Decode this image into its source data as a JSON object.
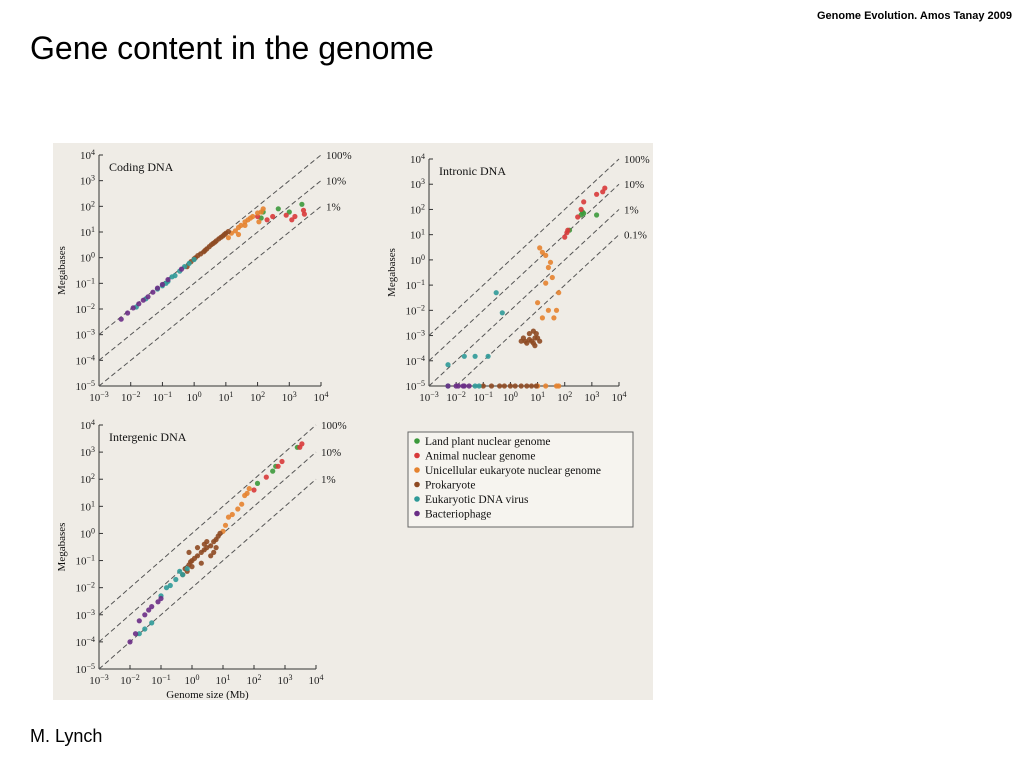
{
  "header": {
    "note": "Genome Evolution. Amos Tanay 2009"
  },
  "slide": {
    "title": "Gene content in the genome",
    "credit": "M. Lynch"
  },
  "legend": {
    "items": [
      {
        "label": "Land plant nuclear genome",
        "color": "#3c9a3c"
      },
      {
        "label": "Animal nuclear genome",
        "color": "#d83a3a"
      },
      {
        "label": "Unicellular eukaryote nuclear genome",
        "color": "#e5832f"
      },
      {
        "label": "Prokaryote",
        "color": "#8e4a22"
      },
      {
        "label": "Eukaryotic DNA virus",
        "color": "#2f9a98"
      },
      {
        "label": "Bacteriophage",
        "color": "#6a2e86"
      }
    ]
  },
  "chart_data": [
    {
      "type": "scatter",
      "title": "Coding DNA",
      "xlabel": "",
      "ylabel": "Megabases",
      "xscale": "log",
      "yscale": "log",
      "xlim": [
        0.001,
        10000
      ],
      "ylim": [
        1e-05,
        10000
      ],
      "x_ticks": [
        "10−3",
        "10−2",
        "10−1",
        "100",
        "101",
        "102",
        "103",
        "104"
      ],
      "y_ticks": [
        "10−5",
        "10−4",
        "10−3",
        "10−2",
        "10−1",
        "100",
        "101",
        "102",
        "103",
        "104"
      ],
      "reference_lines": [
        {
          "label": "100%",
          "fraction": 1
        },
        {
          "label": "10%",
          "fraction": 0.1
        },
        {
          "label": "1%",
          "fraction": 0.01
        }
      ],
      "series": [
        {
          "name": "Land plant nuclear genome",
          "points": [
            [
              150,
              60
            ],
            [
              450,
              80
            ],
            [
              1000,
              60
            ],
            [
              2500,
              120
            ],
            [
              130,
              35
            ]
          ]
        },
        {
          "name": "Animal nuclear genome",
          "points": [
            [
              100,
              40
            ],
            [
              200,
              30
            ],
            [
              300,
              40
            ],
            [
              800,
              45
            ],
            [
              1200,
              30
            ],
            [
              2800,
              70
            ],
            [
              3000,
              50
            ],
            [
              1500,
              40
            ]
          ]
        },
        {
          "name": "Unicellular eukaryote nuclear genome",
          "points": [
            [
              12,
              6
            ],
            [
              15,
              9
            ],
            [
              20,
              11
            ],
            [
              25,
              15
            ],
            [
              30,
              18
            ],
            [
              40,
              25
            ],
            [
              50,
              30
            ],
            [
              60,
              35
            ],
            [
              70,
              40
            ],
            [
              100,
              55
            ],
            [
              110,
              25
            ],
            [
              130,
              60
            ],
            [
              150,
              80
            ],
            [
              40,
              18
            ],
            [
              25,
              8
            ]
          ]
        },
        {
          "name": "Prokaryote",
          "points": [
            [
              0.6,
              0.45
            ],
            [
              0.8,
              0.7
            ],
            [
              1,
              0.9
            ],
            [
              1.3,
              1.2
            ],
            [
              1.6,
              1.4
            ],
            [
              2,
              1.7
            ],
            [
              2.5,
              2.2
            ],
            [
              3,
              2.7
            ],
            [
              3.5,
              3.2
            ],
            [
              4,
              3.6
            ],
            [
              5,
              4.5
            ],
            [
              6,
              5.4
            ],
            [
              7,
              6.2
            ],
            [
              8,
              7
            ],
            [
              9,
              8
            ],
            [
              10,
              9
            ],
            [
              12,
              10.5
            ],
            [
              2.2,
              1.9
            ],
            [
              4.5,
              4
            ],
            [
              1.1,
              1
            ]
          ]
        },
        {
          "name": "Eukaryotic DNA virus",
          "points": [
            [
              0.015,
              0.012
            ],
            [
              0.03,
              0.025
            ],
            [
              0.07,
              0.06
            ],
            [
              0.1,
              0.08
            ],
            [
              0.13,
              0.1
            ],
            [
              0.15,
              0.12
            ],
            [
              0.2,
              0.18
            ],
            [
              0.25,
              0.2
            ],
            [
              0.35,
              0.3
            ],
            [
              0.5,
              0.45
            ],
            [
              0.7,
              0.6
            ],
            [
              1,
              0.85
            ]
          ]
        },
        {
          "name": "Bacteriophage",
          "points": [
            [
              0.005,
              0.004
            ],
            [
              0.008,
              0.007
            ],
            [
              0.012,
              0.011
            ],
            [
              0.018,
              0.016
            ],
            [
              0.025,
              0.022
            ],
            [
              0.035,
              0.03
            ],
            [
              0.05,
              0.045
            ],
            [
              0.07,
              0.065
            ],
            [
              0.1,
              0.09
            ],
            [
              0.15,
              0.14
            ],
            [
              0.4,
              0.36
            ]
          ]
        }
      ]
    },
    {
      "type": "scatter",
      "title": "Intronic DNA",
      "xlabel": "",
      "ylabel": "Megabases",
      "xscale": "log",
      "yscale": "log",
      "xlim": [
        0.001,
        10000
      ],
      "ylim": [
        1e-05,
        10000
      ],
      "x_ticks": [
        "10−3",
        "10−2",
        "10−1",
        "100",
        "101",
        "102",
        "103",
        "104"
      ],
      "y_ticks": [
        "10−5",
        "10−4",
        "10−3",
        "10−2",
        "10−1",
        "100",
        "101",
        "102",
        "103",
        "104"
      ],
      "reference_lines": [
        {
          "label": "100%",
          "fraction": 1
        },
        {
          "label": "10%",
          "fraction": 0.1
        },
        {
          "label": "1%",
          "fraction": 0.01
        },
        {
          "label": "0.1%",
          "fraction": 0.001
        }
      ],
      "series": [
        {
          "name": "Land plant nuclear genome",
          "points": [
            [
              150,
              15
            ],
            [
              400,
              60
            ],
            [
              450,
              80
            ],
            [
              500,
              70
            ],
            [
              1500,
              60
            ]
          ]
        },
        {
          "name": "Animal nuclear genome",
          "points": [
            [
              100,
              8
            ],
            [
              120,
              12
            ],
            [
              130,
              15
            ],
            [
              300,
              50
            ],
            [
              400,
              100
            ],
            [
              500,
              200
            ],
            [
              1500,
              400
            ],
            [
              2500,
              500
            ],
            [
              3000,
              700
            ]
          ]
        },
        {
          "name": "Unicellular eukaryote nuclear genome",
          "points": [
            [
              12,
              3
            ],
            [
              15,
              2
            ],
            [
              20,
              1.5
            ],
            [
              25,
              0.5
            ],
            [
              30,
              0.8
            ],
            [
              35,
              0.2
            ],
            [
              20,
              0.12
            ],
            [
              10,
              0.02
            ],
            [
              25,
              0.01
            ],
            [
              40,
              0.005
            ],
            [
              60,
              0.05
            ],
            [
              15,
              0.005
            ],
            [
              50,
              0.01
            ],
            [
              10,
              1e-05
            ],
            [
              20,
              1e-05
            ],
            [
              50,
              1e-05
            ],
            [
              60,
              1e-05
            ]
          ]
        },
        {
          "name": "Prokaryote",
          "points": [
            [
              2.5,
              0.0006
            ],
            [
              3,
              0.0008
            ],
            [
              3.5,
              0.0006
            ],
            [
              4,
              0.0005
            ],
            [
              5,
              0.0007
            ],
            [
              6,
              0.0006
            ],
            [
              7,
              0.0005
            ],
            [
              8,
              0.0004
            ],
            [
              10,
              0.0008
            ],
            [
              12,
              0.0006
            ],
            [
              5,
              0.0012
            ],
            [
              7,
              0.0015
            ],
            [
              8,
              0.0008
            ],
            [
              9,
              0.0012
            ],
            [
              0.1,
              1e-05
            ],
            [
              0.2,
              1e-05
            ],
            [
              0.4,
              1e-05
            ],
            [
              0.6,
              1e-05
            ],
            [
              1,
              1e-05
            ],
            [
              1.5,
              1e-05
            ],
            [
              2.5,
              1e-05
            ],
            [
              4,
              1e-05
            ],
            [
              6,
              1e-05
            ],
            [
              9,
              1e-05
            ]
          ]
        },
        {
          "name": "Eukaryotic DNA virus",
          "points": [
            [
              0.005,
              7e-05
            ],
            [
              0.02,
              0.00015
            ],
            [
              0.05,
              0.00015
            ],
            [
              0.15,
              0.00015
            ],
            [
              0.3,
              0.05
            ],
            [
              0.5,
              0.008
            ],
            [
              0.005,
              1e-05
            ],
            [
              0.05,
              1e-05
            ],
            [
              0.07,
              1e-05
            ]
          ]
        },
        {
          "name": "Bacteriophage",
          "points": [
            [
              0.005,
              1e-05
            ],
            [
              0.01,
              1e-05
            ],
            [
              0.012,
              1e-05
            ],
            [
              0.018,
              1e-05
            ],
            [
              0.02,
              1e-05
            ],
            [
              0.03,
              1e-05
            ]
          ]
        }
      ]
    },
    {
      "type": "scatter",
      "title": "Intergenic DNA",
      "xlabel": "Genome size (Mb)",
      "ylabel": "Megabases",
      "xscale": "log",
      "yscale": "log",
      "xlim": [
        0.001,
        10000
      ],
      "ylim": [
        1e-05,
        10000
      ],
      "x_ticks": [
        "10−3",
        "10−2",
        "10−1",
        "100",
        "101",
        "102",
        "103",
        "104"
      ],
      "y_ticks": [
        "10−5",
        "10−4",
        "10−3",
        "10−2",
        "10−1",
        "100",
        "101",
        "102",
        "103",
        "104"
      ],
      "reference_lines": [
        {
          "label": "100%",
          "fraction": 1
        },
        {
          "label": "10%",
          "fraction": 0.1
        },
        {
          "label": "1%",
          "fraction": 0.01
        }
      ],
      "series": [
        {
          "name": "Land plant nuclear genome",
          "points": [
            [
              130,
              70
            ],
            [
              500,
              300
            ],
            [
              2500,
              1500
            ],
            [
              400,
              200
            ]
          ]
        },
        {
          "name": "Animal nuclear genome",
          "points": [
            [
              100,
              40
            ],
            [
              250,
              120
            ],
            [
              600,
              300
            ],
            [
              800,
              450
            ],
            [
              3000,
              1500
            ],
            [
              3500,
              2000
            ]
          ]
        },
        {
          "name": "Unicellular eukaryote nuclear genome",
          "points": [
            [
              10,
              1.2
            ],
            [
              12,
              2
            ],
            [
              15,
              4
            ],
            [
              20,
              5
            ],
            [
              30,
              8
            ],
            [
              40,
              12
            ],
            [
              50,
              25
            ],
            [
              60,
              30
            ],
            [
              70,
              45
            ]
          ]
        },
        {
          "name": "Prokaryote",
          "points": [
            [
              0.5,
              0.03
            ],
            [
              0.6,
              0.05
            ],
            [
              0.7,
              0.04
            ],
            [
              0.8,
              0.07
            ],
            [
              0.9,
              0.09
            ],
            [
              1,
              0.1
            ],
            [
              1.2,
              0.12
            ],
            [
              1.5,
              0.15
            ],
            [
              2,
              0.2
            ],
            [
              2.5,
              0.25
            ],
            [
              3,
              0.3
            ],
            [
              4,
              0.35
            ],
            [
              5,
              0.5
            ],
            [
              6,
              0.6
            ],
            [
              7,
              0.8
            ],
            [
              8,
              1
            ],
            [
              1,
              0.06
            ],
            [
              1.5,
              0.3
            ],
            [
              2,
              0.08
            ],
            [
              3,
              0.5
            ],
            [
              4,
              0.15
            ],
            [
              5,
              0.2
            ],
            [
              0.8,
              0.2
            ],
            [
              2.5,
              0.4
            ],
            [
              6,
              0.3
            ]
          ]
        },
        {
          "name": "Eukaryotic DNA virus",
          "points": [
            [
              0.02,
              0.0002
            ],
            [
              0.03,
              0.0003
            ],
            [
              0.05,
              0.0005
            ],
            [
              0.1,
              0.005
            ],
            [
              0.15,
              0.01
            ],
            [
              0.2,
              0.012
            ],
            [
              0.3,
              0.02
            ],
            [
              0.4,
              0.04
            ],
            [
              0.5,
              0.03
            ],
            [
              0.7,
              0.05
            ]
          ]
        },
        {
          "name": "Bacteriophage",
          "points": [
            [
              0.01,
              0.0001
            ],
            [
              0.015,
              0.0002
            ],
            [
              0.02,
              0.0006
            ],
            [
              0.03,
              0.001
            ],
            [
              0.04,
              0.0015
            ],
            [
              0.05,
              0.002
            ],
            [
              0.08,
              0.003
            ],
            [
              0.1,
              0.004
            ]
          ]
        }
      ]
    }
  ]
}
